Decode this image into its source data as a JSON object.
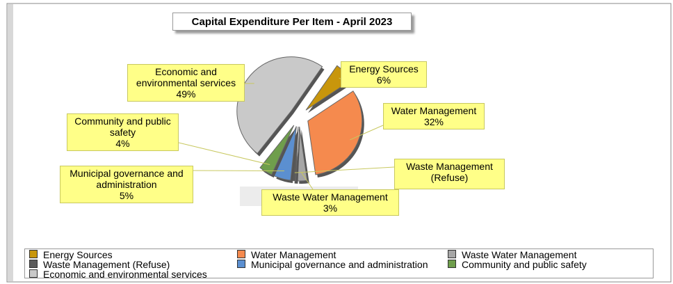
{
  "chart_data": {
    "type": "pie",
    "title": "Capital Expenditure Per Item - April 2023",
    "categories": [
      "Energy Sources",
      "Water Management",
      "Waste Water Management",
      "Waste Management (Refuse)",
      "Municipal governance and administration",
      "Community and public safety",
      "Economic and environmental services"
    ],
    "values": [
      6,
      32,
      3,
      1,
      5,
      4,
      49
    ],
    "value_labels": [
      "6%",
      "32%",
      "3%",
      null,
      "5%",
      "4%",
      "49%"
    ],
    "colors": [
      "#c8960c",
      "#f58a4e",
      "#a6a6a6",
      "#5a5a5a",
      "#5b8fd0",
      "#6f9e4c",
      "#c9c9c9"
    ],
    "legend": "bottom"
  }
}
